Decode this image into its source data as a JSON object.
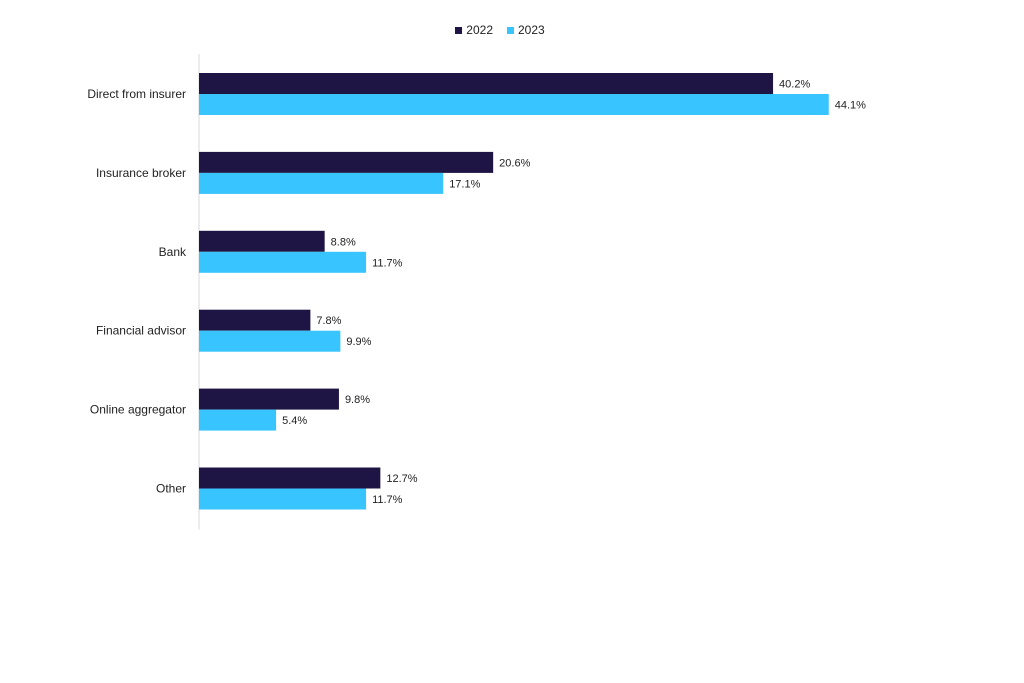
{
  "chart_data": {
    "type": "bar",
    "orientation": "horizontal",
    "categories": [
      "Direct from insurer",
      "Insurance broker",
      "Bank",
      "Financial advisor",
      "Online aggregator",
      "Other"
    ],
    "series": [
      {
        "name": "2022",
        "color": "#1f1544",
        "values": [
          40.2,
          20.6,
          8.8,
          7.8,
          9.8,
          12.7
        ],
        "labels": [
          "40.2%",
          "20.6%",
          "8.8%",
          "7.8%",
          "9.8%",
          "12.7%"
        ]
      },
      {
        "name": "2023",
        "color": "#38c4ff",
        "values": [
          44.1,
          17.1,
          11.7,
          9.9,
          5.4,
          11.7
        ],
        "labels": [
          "44.1%",
          "17.1%",
          "11.7%",
          "9.9%",
          "5.4%",
          "11.7%"
        ]
      }
    ],
    "xlim": [
      0,
      50
    ],
    "grid": false,
    "legend_position": "top"
  }
}
